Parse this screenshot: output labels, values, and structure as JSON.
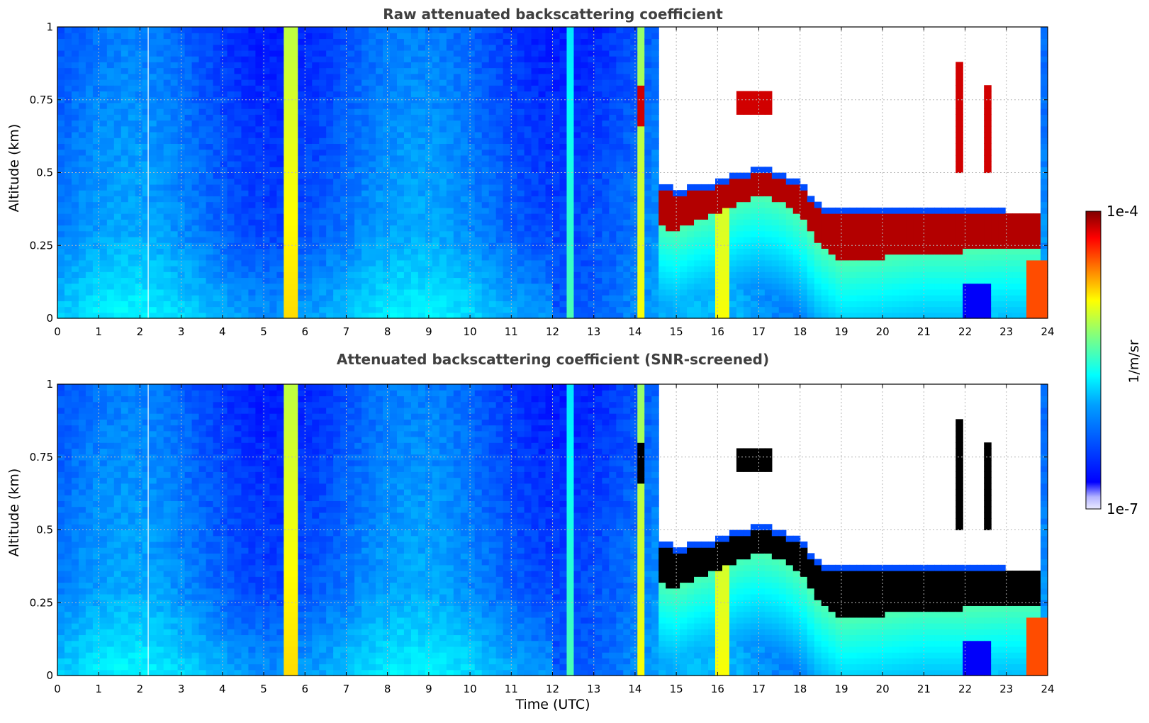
{
  "chart_data": [
    {
      "type": "heatmap",
      "title": "Raw attenuated backscattering coefficient",
      "xlabel": "",
      "ylabel": "Altitude (km)",
      "xlim": [
        0,
        24
      ],
      "ylim": [
        0,
        1
      ],
      "xticks": [
        "0",
        "1",
        "2",
        "3",
        "4",
        "5",
        "6",
        "7",
        "8",
        "9",
        "10",
        "11",
        "12",
        "13",
        "14",
        "15",
        "16",
        "17",
        "18",
        "19",
        "20",
        "21",
        "22",
        "23",
        "24"
      ],
      "yticks": [
        "0",
        "0.25",
        "0.5",
        "0.75",
        "1"
      ],
      "grid": true,
      "colormap": "jet",
      "log_scale": true,
      "cloud_base_km": [
        [
          0,
          null
        ],
        [
          14.5,
          null
        ],
        [
          14.6,
          0.32
        ],
        [
          15.0,
          0.3
        ],
        [
          15.5,
          0.34
        ],
        [
          16.0,
          0.36
        ],
        [
          16.5,
          0.4
        ],
        [
          17.0,
          0.42
        ],
        [
          17.5,
          0.4
        ],
        [
          18.0,
          0.35
        ],
        [
          18.4,
          0.26
        ],
        [
          19.0,
          0.19
        ],
        [
          20.0,
          0.21
        ],
        [
          21.0,
          0.23
        ],
        [
          22.0,
          0.23
        ],
        [
          23.0,
          0.24
        ],
        [
          23.8,
          0.24
        ]
      ],
      "cloud_top_km": [
        [
          14.6,
          0.45
        ],
        [
          15.0,
          0.42
        ],
        [
          15.5,
          0.44
        ],
        [
          16.0,
          0.45
        ],
        [
          16.5,
          0.48
        ],
        [
          17.0,
          0.5
        ],
        [
          17.5,
          0.48
        ],
        [
          18.0,
          0.45
        ],
        [
          18.4,
          0.38
        ],
        [
          19.0,
          0.35
        ],
        [
          20.0,
          0.36
        ],
        [
          21.0,
          0.36
        ],
        [
          22.0,
          0.36
        ],
        [
          23.0,
          0.35
        ],
        [
          23.8,
          0.35
        ]
      ],
      "upper_clouds": [
        {
          "t": [
            16.5,
            17.3
          ],
          "alt": [
            0.7,
            0.78
          ]
        },
        {
          "t": [
            21.7,
            21.95
          ],
          "alt": [
            0.5,
            0.87
          ]
        },
        {
          "t": [
            22.4,
            22.6
          ],
          "alt": [
            0.5,
            0.79
          ]
        },
        {
          "t": [
            14.1,
            14.3
          ],
          "alt": [
            0.67,
            0.8
          ]
        }
      ]
    },
    {
      "type": "heatmap",
      "title": "Attenuated backscattering coefficient (SNR-screened)",
      "xlabel": "Time (UTC)",
      "ylabel": "Altitude (km)",
      "xlim": [
        0,
        24
      ],
      "ylim": [
        0,
        1
      ],
      "xticks": [
        "0",
        "1",
        "2",
        "3",
        "4",
        "5",
        "6",
        "7",
        "8",
        "9",
        "10",
        "11",
        "12",
        "13",
        "14",
        "15",
        "16",
        "17",
        "18",
        "19",
        "20",
        "21",
        "22",
        "23",
        "24"
      ],
      "yticks": [
        "0",
        "0.25",
        "0.5",
        "0.75",
        "1"
      ],
      "grid": true,
      "colormap": "jet",
      "log_scale": true,
      "screened_value_color": "#000000"
    }
  ],
  "colorbar": {
    "label": "1/m/sr",
    "max_label": "1e-4",
    "min_label": "1e-7",
    "scale": "log"
  },
  "colors": {
    "title": "#404040",
    "background_bin": "#1f6ef2",
    "cloud_core": "#8b0000",
    "screened": "#000000"
  }
}
